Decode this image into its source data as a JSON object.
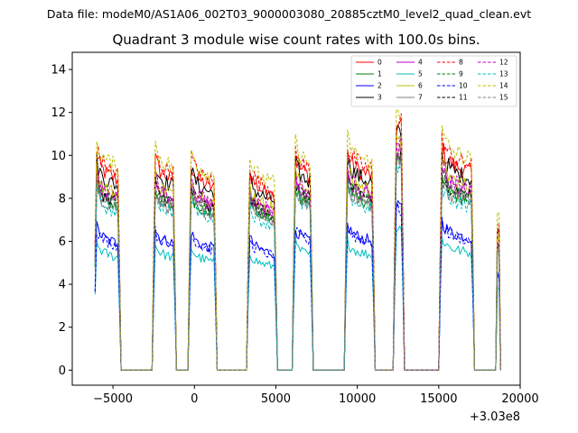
{
  "suptitle": "Data file: modeM0/AS1A06_002T03_9000003080_20885cztM0_level2_quad_clean.evt",
  "chart_data": {
    "type": "line",
    "title": "Quadrant 3 module wise count rates with 100.0s bins.",
    "xlabel": "",
    "ylabel": "",
    "x_offset_label": "+3.03e8",
    "xlim": [
      -7500,
      20000
    ],
    "ylim": [
      -0.7,
      14.8
    ],
    "xticks": [
      -5000,
      0,
      5000,
      10000,
      15000,
      20000
    ],
    "xtick_labels": [
      "−5000",
      "0",
      "5000",
      "10000",
      "15000",
      "20000"
    ],
    "yticks": [
      0,
      2,
      4,
      6,
      8,
      10,
      12,
      14
    ],
    "ytick_labels": [
      "0",
      "2",
      "4",
      "6",
      "8",
      "10",
      "12",
      "14"
    ],
    "grid": false,
    "legend_position": "top-right",
    "segments": [
      {
        "start": -6100,
        "end": -4600,
        "level": 1.0
      },
      {
        "start": -2550,
        "end": -1200,
        "level": 1.0
      },
      {
        "start": -300,
        "end": 1300,
        "level": 0.96
      },
      {
        "start": 3300,
        "end": 5000,
        "level": 0.92
      },
      {
        "start": 6050,
        "end": 7200,
        "level": 1.02
      },
      {
        "start": 9250,
        "end": 11000,
        "level": 1.02
      },
      {
        "start": 12300,
        "end": 12850,
        "level": 1.22
      },
      {
        "start": 15050,
        "end": 17100,
        "level": 1.04
      },
      {
        "start": 18550,
        "end": 18700,
        "level": 1.3
      }
    ],
    "series": [
      {
        "name": "0",
        "color": "#ff0000",
        "dash": "solid",
        "base": 9.3
      },
      {
        "name": "1",
        "color": "#008000",
        "dash": "solid",
        "base": 8.0
      },
      {
        "name": "2",
        "color": "#0000ff",
        "dash": "solid",
        "base": 6.2
      },
      {
        "name": "3",
        "color": "#000000",
        "dash": "solid",
        "base": 9.0
      },
      {
        "name": "4",
        "color": "#c000c0",
        "dash": "solid",
        "base": 8.3
      },
      {
        "name": "5",
        "color": "#00bfbf",
        "dash": "solid",
        "base": 5.5
      },
      {
        "name": "6",
        "color": "#bfbf00",
        "dash": "solid",
        "base": 8.6
      },
      {
        "name": "7",
        "color": "#808080",
        "dash": "solid",
        "base": 7.9
      },
      {
        "name": "8",
        "color": "#ff0000",
        "dash": "dashed",
        "base": 9.6
      },
      {
        "name": "9",
        "color": "#008000",
        "dash": "dashed",
        "base": 8.1
      },
      {
        "name": "10",
        "color": "#0000ff",
        "dash": "dashed",
        "base": 6.1
      },
      {
        "name": "11",
        "color": "#000000",
        "dash": "dashed",
        "base": 8.2
      },
      {
        "name": "12",
        "color": "#c000c0",
        "dash": "dashed",
        "base": 8.5
      },
      {
        "name": "13",
        "color": "#00bfbf",
        "dash": "dashed",
        "base": 7.7
      },
      {
        "name": "14",
        "color": "#bfbf00",
        "dash": "dashed",
        "base": 9.9
      },
      {
        "name": "15",
        "color": "#808080",
        "dash": "dashed",
        "base": 8.0
      }
    ]
  }
}
